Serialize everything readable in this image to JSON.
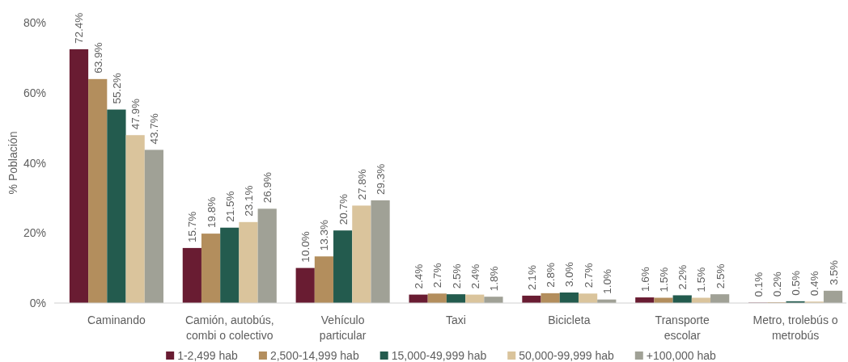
{
  "chart_data": {
    "type": "bar",
    "ylabel": "% Población",
    "categories": [
      "Caminando",
      "Camión, autobús, combi o colectivo",
      "Vehículo particular",
      "Taxi",
      "Bicicleta",
      "Transporte escolar",
      "Metro, trolebús o metrobús"
    ],
    "series": [
      {
        "name": "1-2,499 hab",
        "color": "#691c32",
        "values": [
          72.4,
          15.7,
          10.0,
          2.4,
          2.1,
          1.6,
          0.1
        ],
        "value_labels": [
          "72.4%",
          "15.7%",
          "10.0%",
          "2.4%",
          "2.1%",
          "1.6%",
          "0.1%"
        ]
      },
      {
        "name": "2,500-14,999 hab",
        "color": "#b38e5d",
        "values": [
          63.9,
          19.8,
          13.3,
          2.7,
          2.8,
          1.5,
          0.2
        ],
        "value_labels": [
          "63.9%",
          "19.8%",
          "13.3%",
          "2.7%",
          "2.8%",
          "1.5%",
          "0.2%"
        ]
      },
      {
        "name": "15,000-49,999 hab",
        "color": "#235b4e",
        "values": [
          55.2,
          21.5,
          20.7,
          2.5,
          3.0,
          2.2,
          0.5
        ],
        "value_labels": [
          "55.2%",
          "21.5%",
          "20.7%",
          "2.5%",
          "3.0%",
          "2.2%",
          "0.5%"
        ]
      },
      {
        "name": "50,000-99,999 hab",
        "color": "#dac49c",
        "values": [
          47.9,
          23.1,
          27.8,
          2.4,
          2.7,
          1.5,
          0.4
        ],
        "value_labels": [
          "47.9%",
          "23.1%",
          "27.8%",
          "2.4%",
          "2.7%",
          "1.5%",
          "0.4%"
        ]
      },
      {
        "name": "+100,000 hab",
        "color": "#a0a196",
        "values": [
          43.7,
          26.9,
          29.3,
          1.8,
          1.0,
          2.5,
          3.5
        ],
        "value_labels": [
          "43.7%",
          "26.9%",
          "29.3%",
          "1.8%",
          "1.0%",
          "2.5%",
          "3.5%"
        ]
      }
    ],
    "ylim": [
      0,
      80
    ],
    "yticks": [
      {
        "value": 0,
        "label": "0%"
      },
      {
        "value": 20,
        "label": "20%"
      },
      {
        "value": 40,
        "label": "40%"
      },
      {
        "value": 60,
        "label": "60%"
      },
      {
        "value": 80,
        "label": "80%"
      }
    ],
    "legend": "bottom"
  }
}
